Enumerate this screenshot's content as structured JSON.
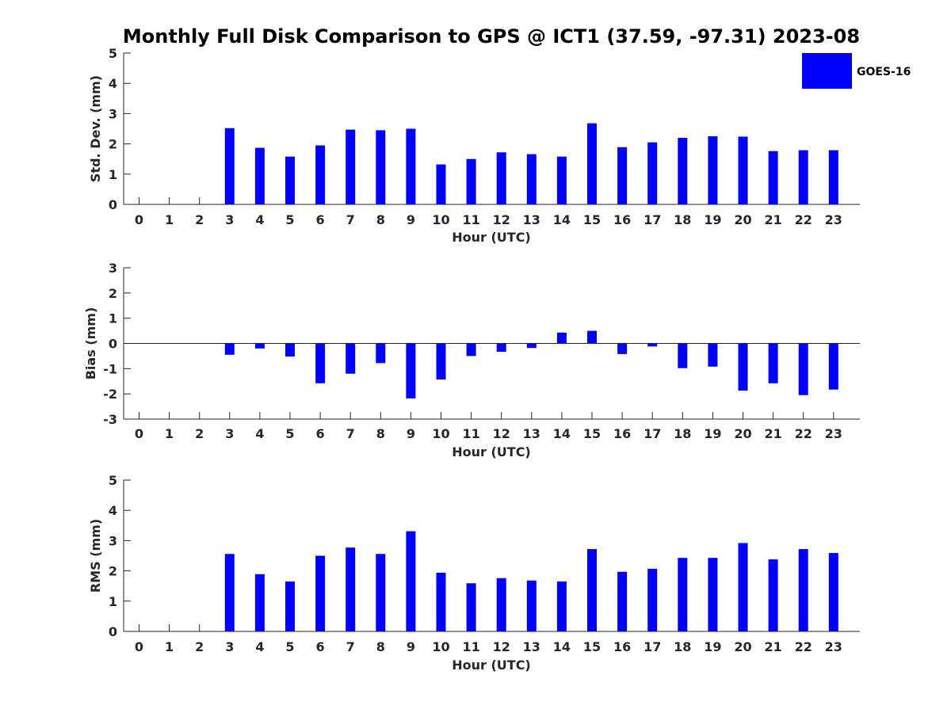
{
  "title": "Monthly Full Disk Comparison to GPS @ ICT1 (37.59, -97.31) 2023-08",
  "legend": {
    "label": "GOES-16",
    "color": "#0000ff",
    "placement": "top-right"
  },
  "chart_data": [
    {
      "type": "bar",
      "xlabel": "Hour (UTC)",
      "ylabel": "Std. Dev. (mm)",
      "ylim": [
        0,
        5
      ],
      "yticks": [
        "0",
        "1",
        "2",
        "3",
        "4",
        "5"
      ],
      "categories": [
        "0",
        "1",
        "2",
        "3",
        "4",
        "5",
        "6",
        "7",
        "8",
        "9",
        "10",
        "11",
        "12",
        "13",
        "14",
        "15",
        "16",
        "17",
        "18",
        "19",
        "20",
        "21",
        "22",
        "23"
      ],
      "series": [
        {
          "name": "GOES-16",
          "values": [
            null,
            null,
            null,
            2.52,
            1.87,
            1.58,
            1.95,
            2.47,
            2.45,
            2.5,
            1.32,
            1.5,
            1.72,
            1.66,
            1.58,
            2.68,
            1.89,
            2.05,
            2.2,
            2.25,
            2.24,
            1.76,
            1.79,
            1.79
          ]
        }
      ]
    },
    {
      "type": "bar",
      "xlabel": "Hour (UTC)",
      "ylabel": "Bias (mm)",
      "ylim": [
        -3,
        3
      ],
      "yticks": [
        "-3",
        "-2",
        "-1",
        "0",
        "1",
        "2",
        "3"
      ],
      "categories": [
        "0",
        "1",
        "2",
        "3",
        "4",
        "5",
        "6",
        "7",
        "8",
        "9",
        "10",
        "11",
        "12",
        "13",
        "14",
        "15",
        "16",
        "17",
        "18",
        "19",
        "20",
        "21",
        "22",
        "23"
      ],
      "series": [
        {
          "name": "GOES-16",
          "values": [
            null,
            null,
            null,
            -0.45,
            -0.2,
            -0.52,
            -1.58,
            -1.2,
            -0.78,
            -2.18,
            -1.43,
            -0.5,
            -0.33,
            -0.18,
            0.43,
            0.5,
            -0.42,
            -0.12,
            -0.98,
            -0.92,
            -1.87,
            -1.58,
            -2.05,
            -1.83
          ]
        }
      ]
    },
    {
      "type": "bar",
      "xlabel": "Hour (UTC)",
      "ylabel": "RMS (mm)",
      "ylim": [
        0,
        5
      ],
      "yticks": [
        "0",
        "1",
        "2",
        "3",
        "4",
        "5"
      ],
      "categories": [
        "0",
        "1",
        "2",
        "3",
        "4",
        "5",
        "6",
        "7",
        "8",
        "9",
        "10",
        "11",
        "12",
        "13",
        "14",
        "15",
        "16",
        "17",
        "18",
        "19",
        "20",
        "21",
        "22",
        "23"
      ],
      "series": [
        {
          "name": "GOES-16",
          "values": [
            null,
            null,
            null,
            2.56,
            1.89,
            1.65,
            2.5,
            2.77,
            2.56,
            3.31,
            1.94,
            1.59,
            1.76,
            1.68,
            1.65,
            2.72,
            1.97,
            2.07,
            2.43,
            2.43,
            2.92,
            2.38,
            2.72,
            2.59
          ]
        }
      ]
    }
  ]
}
